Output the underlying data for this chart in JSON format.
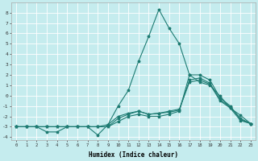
{
  "xlabel": "Humidex (Indice chaleur)",
  "background_color": "#c5ecee",
  "grid_color": "#e0f0f0",
  "line_color": "#1e7b72",
  "xlim_min": -0.5,
  "xlim_max": 23.5,
  "ylim_min": -4.3,
  "ylim_max": 9.0,
  "yticks": [
    -4,
    -3,
    -2,
    -1,
    0,
    1,
    2,
    3,
    4,
    5,
    6,
    7,
    8
  ],
  "xtick_labels": [
    "0",
    "1",
    "2",
    "3",
    "4",
    "5",
    "6",
    "7",
    "8",
    "9",
    "10",
    "11",
    "12",
    "13",
    "14",
    "15",
    "16",
    "17",
    "18",
    "19",
    "20",
    "21",
    "22",
    "23"
  ],
  "series": [
    {
      "x": [
        0,
        1,
        2,
        3,
        4,
        5,
        6,
        7,
        8,
        9,
        10,
        11,
        12,
        13,
        14,
        15,
        16,
        17,
        18,
        19,
        20,
        21,
        22,
        23
      ],
      "y": [
        -3,
        -3,
        -3,
        -3,
        -3,
        -3,
        -3,
        -3,
        -3,
        -3,
        -2.5,
        -2,
        -1.8,
        -2,
        -2,
        -1.8,
        -1.5,
        2.0,
        2.0,
        1.5,
        -0.2,
        -1.0,
        -2.3,
        -2.7
      ]
    },
    {
      "x": [
        0,
        1,
        2,
        3,
        4,
        5,
        6,
        7,
        8,
        9,
        10,
        11,
        12,
        13,
        14,
        15,
        16,
        17,
        18,
        19,
        20,
        21,
        22,
        23
      ],
      "y": [
        -3,
        -3,
        -3,
        -3,
        -3,
        -3,
        -3,
        -3,
        -3,
        -3,
        -2.2,
        -1.8,
        -1.5,
        -1.8,
        -1.7,
        -1.6,
        -1.4,
        1.5,
        1.7,
        1.2,
        -0.4,
        -1.1,
        -2.2,
        -2.7
      ]
    },
    {
      "x": [
        0,
        1,
        2,
        3,
        4,
        5,
        6,
        7,
        8,
        9,
        10,
        11,
        12,
        13,
        14,
        15,
        16,
        17,
        18,
        19,
        20,
        21,
        22,
        23
      ],
      "y": [
        -3,
        -3,
        -3,
        -3,
        -3,
        -3,
        -3,
        -3,
        -3,
        -2.8,
        -2.0,
        -1.7,
        -1.5,
        -1.8,
        -1.7,
        -1.5,
        -1.3,
        1.3,
        1.5,
        1.1,
        -0.5,
        -1.2,
        -2.4,
        -2.7
      ]
    },
    {
      "x": [
        0,
        1,
        2,
        3,
        4,
        5,
        6,
        7,
        8,
        9,
        10,
        11,
        12,
        13,
        14,
        15,
        16,
        17,
        18,
        19,
        20,
        21,
        22,
        23
      ],
      "y": [
        -3,
        -3,
        -3,
        -3.5,
        -3.5,
        -3,
        -3,
        -3,
        -3.8,
        -2.8,
        -1.0,
        0.5,
        3.3,
        5.7,
        8.3,
        6.5,
        5.0,
        2.0,
        1.3,
        1.0,
        -0.05,
        -1.2,
        -1.9,
        -2.7
      ]
    }
  ]
}
